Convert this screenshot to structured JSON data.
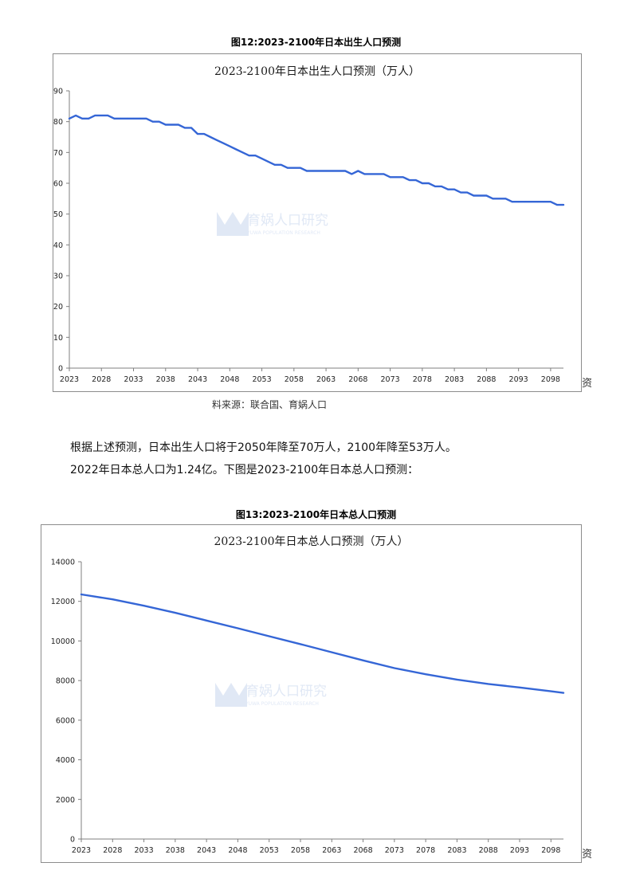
{
  "figures": [
    {
      "caption": "图12:2023-2100年日本出生人口预测",
      "trailing_char": "资",
      "watermark": {
        "brand": "育娲人口研究",
        "sub": "YUWA POPULATION RESEARCH"
      },
      "chart_data": {
        "type": "line",
        "title": "2023-2100年日本出生人口预测（万人）",
        "xlabel": "",
        "ylabel": "",
        "x_ticks": [
          "2023",
          "2028",
          "2033",
          "2038",
          "2043",
          "2048",
          "2053",
          "2058",
          "2063",
          "2068",
          "2073",
          "2078",
          "2083",
          "2088",
          "2093",
          "2098"
        ],
        "y_ticks": [
          "0",
          "10",
          "20",
          "30",
          "40",
          "50",
          "60",
          "70",
          "80",
          "90"
        ],
        "ylim": [
          0,
          90
        ],
        "xlim": [
          2023,
          2100
        ],
        "grid": false,
        "series": [
          {
            "color": "#3566d6",
            "x": [
              2023,
              2024,
              2025,
              2026,
              2027,
              2028,
              2029,
              2030,
              2031,
              2032,
              2033,
              2034,
              2035,
              2036,
              2037,
              2038,
              2039,
              2040,
              2041,
              2042,
              2043,
              2044,
              2045,
              2046,
              2047,
              2048,
              2049,
              2050,
              2051,
              2052,
              2053,
              2054,
              2055,
              2056,
              2057,
              2058,
              2059,
              2060,
              2061,
              2062,
              2063,
              2064,
              2065,
              2066,
              2067,
              2068,
              2069,
              2070,
              2071,
              2072,
              2073,
              2074,
              2075,
              2076,
              2077,
              2078,
              2079,
              2080,
              2081,
              2082,
              2083,
              2084,
              2085,
              2086,
              2087,
              2088,
              2089,
              2090,
              2091,
              2092,
              2093,
              2094,
              2095,
              2096,
              2097,
              2098,
              2099,
              2100
            ],
            "values": [
              81,
              82,
              81,
              81,
              82,
              82,
              82,
              81,
              81,
              81,
              81,
              81,
              81,
              80,
              80,
              79,
              79,
              79,
              78,
              78,
              76,
              76,
              75,
              74,
              73,
              72,
              71,
              70,
              69,
              69,
              68,
              67,
              66,
              66,
              65,
              65,
              65,
              64,
              64,
              64,
              64,
              64,
              64,
              64,
              63,
              64,
              63,
              63,
              63,
              63,
              62,
              62,
              62,
              61,
              61,
              60,
              60,
              59,
              59,
              58,
              58,
              57,
              57,
              56,
              56,
              56,
              55,
              55,
              55,
              54,
              54,
              54,
              54,
              54,
              54,
              54,
              53,
              53
            ]
          }
        ]
      }
    },
    {
      "caption": "图13:2023-2100年日本总人口预测",
      "trailing_char": "资",
      "watermark": {
        "brand": "育娲人口研究",
        "sub": "YUWA POPULATION RESEARCH"
      },
      "chart_data": {
        "type": "line",
        "title": "2023-2100年日本总人口预测（万人）",
        "xlabel": "",
        "ylabel": "",
        "x_ticks": [
          "2023",
          "2028",
          "2033",
          "2038",
          "2043",
          "2048",
          "2053",
          "2058",
          "2063",
          "2068",
          "2073",
          "2078",
          "2083",
          "2088",
          "2093",
          "2098"
        ],
        "y_ticks": [
          "0",
          "2000",
          "4000",
          "6000",
          "8000",
          "10000",
          "12000",
          "14000"
        ],
        "ylim": [
          0,
          14000
        ],
        "xlim": [
          2023,
          2100
        ],
        "grid": false,
        "series": [
          {
            "color": "#3566d6",
            "x": [
              2023,
              2028,
              2033,
              2038,
              2043,
              2048,
              2053,
              2058,
              2063,
              2068,
              2073,
              2078,
              2083,
              2088,
              2093,
              2098,
              2100
            ],
            "values": [
              12350,
              12100,
              11780,
              11420,
              11030,
              10640,
              10240,
              9840,
              9430,
              9020,
              8630,
              8320,
              8050,
              7830,
              7650,
              7460,
              7380
            ]
          }
        ]
      }
    }
  ],
  "source": "料来源：联合国、育娲人口",
  "paragraph": [
    "根据上述预测，日本出生人口将于2050年降至70万人，2100年降至53万人。",
    "2022年日本总人口为1.24亿。下图是2023-2100年日本总人口预测："
  ]
}
